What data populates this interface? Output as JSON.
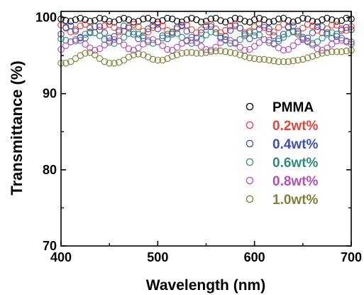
{
  "chart_data": {
    "type": "scatter",
    "xlabel": "Wavelength (nm)",
    "ylabel": "Transmittance (%)",
    "xlim": [
      400,
      700
    ],
    "ylim": [
      70,
      100.8
    ],
    "xticks": [
      400,
      500,
      600,
      700
    ],
    "yticks": [
      70,
      80,
      90,
      100
    ],
    "grid": false,
    "legend_position": "center-right",
    "marker": "open-circle",
    "series": [
      {
        "name": "PMMA",
        "color": "#000000",
        "x": [
          400,
          405,
          410,
          415,
          420,
          425,
          430,
          435,
          440,
          445,
          450,
          455,
          460,
          465,
          470,
          475,
          480,
          485,
          490,
          495,
          500,
          505,
          510,
          515,
          520,
          525,
          530,
          535,
          540,
          545,
          550,
          555,
          560,
          565,
          570,
          575,
          580,
          585,
          590,
          595,
          600,
          605,
          610,
          615,
          620,
          625,
          630,
          635,
          640,
          645,
          650,
          655,
          660,
          665,
          670,
          675,
          680,
          685,
          690,
          695,
          700
        ],
        "y": [
          99.8,
          99.6,
          99.5,
          99.7,
          99.9,
          99.7,
          99.5,
          99.6,
          99.9,
          99.8,
          99.5,
          99.4,
          99.7,
          99.9,
          99.7,
          99.4,
          99.5,
          99.8,
          99.9,
          99.6,
          99.4,
          99.6,
          99.9,
          99.8,
          99.5,
          99.4,
          99.7,
          99.9,
          99.7,
          99.4,
          99.5,
          99.8,
          99.9,
          99.6,
          99.4,
          99.6,
          99.9,
          99.8,
          99.5,
          99.4,
          99.7,
          99.9,
          99.7,
          99.4,
          99.5,
          99.8,
          99.9,
          99.6,
          99.4,
          99.6,
          99.9,
          99.8,
          99.5,
          99.4,
          99.7,
          99.9,
          99.7,
          99.5,
          99.6,
          99.9,
          99.8
        ]
      },
      {
        "name": "0.2wt%",
        "color": "#e8433a",
        "x": [
          400,
          405,
          410,
          415,
          420,
          425,
          430,
          435,
          440,
          445,
          450,
          455,
          460,
          465,
          470,
          475,
          480,
          485,
          490,
          495,
          500,
          505,
          510,
          515,
          520,
          525,
          530,
          535,
          540,
          545,
          550,
          555,
          560,
          565,
          570,
          575,
          580,
          585,
          590,
          595,
          600,
          605,
          610,
          615,
          620,
          625,
          630,
          635,
          640,
          645,
          650,
          655,
          660,
          665,
          670,
          675,
          680,
          685,
          690,
          695,
          700
        ],
        "y": [
          99.0,
          98.6,
          98.1,
          98.4,
          98.9,
          99.1,
          98.6,
          98.0,
          98.3,
          98.9,
          99.1,
          98.7,
          98.1,
          98.2,
          98.8,
          99.1,
          98.8,
          98.2,
          98.1,
          98.7,
          99.1,
          98.9,
          98.3,
          98.0,
          98.5,
          99.0,
          99.0,
          98.4,
          98.0,
          98.4,
          99.0,
          99.1,
          98.5,
          98.0,
          98.3,
          98.9,
          99.1,
          98.6,
          98.0,
          98.2,
          98.8,
          99.1,
          98.7,
          98.1,
          98.1,
          98.7,
          99.1,
          98.8,
          98.2,
          98.0,
          98.6,
          99.1,
          98.9,
          98.3,
          98.0,
          98.5,
          99.0,
          99.0,
          98.5,
          98.3,
          98.8
        ]
      },
      {
        "name": "0.4wt%",
        "color": "#3d4fb0",
        "x": [
          400,
          405,
          410,
          415,
          420,
          425,
          430,
          435,
          440,
          445,
          450,
          455,
          460,
          465,
          470,
          475,
          480,
          485,
          490,
          495,
          500,
          505,
          510,
          515,
          520,
          525,
          530,
          535,
          540,
          545,
          550,
          555,
          560,
          565,
          570,
          575,
          580,
          585,
          590,
          595,
          600,
          605,
          610,
          615,
          620,
          625,
          630,
          635,
          640,
          645,
          650,
          655,
          660,
          665,
          670,
          675,
          680,
          685,
          690,
          695,
          700
        ],
        "y": [
          97.8,
          98.7,
          98.9,
          98.2,
          97.4,
          97.3,
          98.0,
          98.8,
          98.8,
          98.0,
          97.3,
          97.5,
          98.3,
          98.9,
          98.6,
          97.8,
          97.2,
          97.6,
          98.5,
          99.0,
          98.5,
          97.6,
          97.2,
          97.8,
          98.7,
          98.9,
          98.2,
          97.4,
          97.3,
          98.0,
          98.8,
          98.8,
          98.0,
          97.3,
          97.5,
          98.3,
          98.9,
          98.6,
          97.8,
          97.2,
          97.6,
          98.5,
          99.0,
          98.5,
          97.6,
          97.2,
          97.8,
          98.7,
          98.9,
          98.2,
          97.4,
          97.3,
          98.0,
          98.8,
          98.8,
          98.0,
          97.3,
          97.5,
          98.3,
          98.7,
          98.4
        ]
      },
      {
        "name": "0.6wt%",
        "color": "#2e8b7a",
        "x": [
          400,
          405,
          410,
          415,
          420,
          425,
          430,
          435,
          440,
          445,
          450,
          455,
          460,
          465,
          470,
          475,
          480,
          485,
          490,
          495,
          500,
          505,
          510,
          515,
          520,
          525,
          530,
          535,
          540,
          545,
          550,
          555,
          560,
          565,
          570,
          575,
          580,
          585,
          590,
          595,
          600,
          605,
          610,
          615,
          620,
          625,
          630,
          635,
          640,
          645,
          650,
          655,
          660,
          665,
          670,
          675,
          680,
          685,
          690,
          695,
          700
        ],
        "y": [
          97.2,
          97.0,
          96.8,
          96.9,
          97.3,
          97.8,
          98.1,
          98.0,
          97.6,
          97.1,
          96.7,
          96.6,
          96.9,
          97.4,
          97.9,
          98.1,
          97.8,
          97.3,
          96.8,
          96.6,
          96.8,
          97.3,
          97.8,
          98.1,
          97.9,
          97.4,
          96.9,
          96.6,
          96.7,
          97.1,
          97.7,
          98.1,
          98.0,
          97.5,
          97.0,
          96.6,
          96.7,
          97.1,
          97.6,
          98.0,
          98.1,
          97.7,
          97.1,
          96.7,
          96.6,
          96.9,
          97.4,
          97.9,
          98.1,
          97.8,
          97.2,
          96.8,
          96.6,
          96.8,
          97.3,
          97.8,
          98.0,
          97.8,
          97.3,
          96.9,
          96.8
        ]
      },
      {
        "name": "0.8wt%",
        "color": "#b04fb5",
        "x": [
          400,
          405,
          410,
          415,
          420,
          425,
          430,
          435,
          440,
          445,
          450,
          455,
          460,
          465,
          470,
          475,
          480,
          485,
          490,
          495,
          500,
          505,
          510,
          515,
          520,
          525,
          530,
          535,
          540,
          545,
          550,
          555,
          560,
          565,
          570,
          575,
          580,
          585,
          590,
          595,
          600,
          605,
          610,
          615,
          620,
          625,
          630,
          635,
          640,
          645,
          650,
          655,
          660,
          665,
          670,
          675,
          680,
          685,
          690,
          695,
          700
        ],
        "y": [
          95.8,
          96.3,
          96.8,
          97.1,
          97.0,
          96.5,
          96.0,
          95.7,
          95.9,
          96.4,
          96.9,
          97.1,
          96.9,
          96.4,
          95.9,
          95.7,
          96.0,
          96.5,
          97.0,
          97.1,
          96.8,
          96.3,
          95.8,
          95.7,
          96.1,
          96.6,
          97.0,
          97.0,
          96.7,
          96.2,
          95.8,
          95.7,
          96.1,
          96.7,
          97.1,
          97.0,
          96.6,
          96.1,
          95.7,
          95.8,
          96.2,
          96.7,
          97.1,
          97.0,
          96.5,
          96.0,
          95.7,
          95.8,
          96.3,
          96.8,
          97.1,
          96.9,
          96.4,
          95.9,
          95.7,
          96.0,
          96.5,
          96.9,
          97.0,
          96.8,
          96.5
        ]
      },
      {
        "name": "1.0wt%",
        "color": "#7f7f3a",
        "x": [
          400,
          405,
          410,
          415,
          420,
          425,
          430,
          435,
          440,
          445,
          450,
          455,
          460,
          465,
          470,
          475,
          480,
          485,
          490,
          495,
          500,
          505,
          510,
          515,
          520,
          525,
          530,
          535,
          540,
          545,
          550,
          555,
          560,
          565,
          570,
          575,
          580,
          585,
          590,
          595,
          600,
          605,
          610,
          615,
          620,
          625,
          630,
          635,
          640,
          645,
          650,
          655,
          660,
          665,
          670,
          675,
          680,
          685,
          690,
          695,
          700
        ],
        "y": [
          94.0,
          94.0,
          94.2,
          94.6,
          95.0,
          95.3,
          95.4,
          95.1,
          94.6,
          94.2,
          94.0,
          94.0,
          94.1,
          94.4,
          94.8,
          95.1,
          95.2,
          95.1,
          94.8,
          94.5,
          94.4,
          94.4,
          94.6,
          94.9,
          95.1,
          95.3,
          95.4,
          95.4,
          95.3,
          95.3,
          95.4,
          95.5,
          95.6,
          95.6,
          95.5,
          95.4,
          95.3,
          95.1,
          94.9,
          94.7,
          94.6,
          94.5,
          94.5,
          94.4,
          94.3,
          94.2,
          94.2,
          94.2,
          94.3,
          94.4,
          94.5,
          94.7,
          94.9,
          95.1,
          95.3,
          95.4,
          95.5,
          95.5,
          95.5,
          95.6,
          95.7
        ]
      }
    ]
  }
}
